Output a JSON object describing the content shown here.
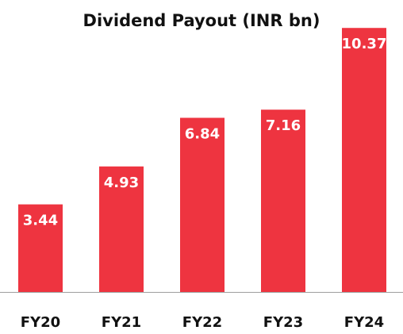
{
  "chart_data": {
    "type": "bar",
    "title": "Dividend Payout (INR bn)",
    "xlabel": "",
    "ylabel": "",
    "categories": [
      "FY20",
      "FY21",
      "FY22",
      "FY23",
      "FY24"
    ],
    "values": [
      3.44,
      4.93,
      6.84,
      7.16,
      10.37
    ],
    "value_labels": [
      "3.44",
      "4.93",
      "6.84",
      "7.16",
      "10.37"
    ],
    "ylim": [
      0,
      11
    ],
    "grid": false,
    "legend": "none",
    "colors": {
      "bar": "#EE3440",
      "axis": "#9e9e9e",
      "text": "#111111",
      "label": "#ffffff"
    }
  }
}
